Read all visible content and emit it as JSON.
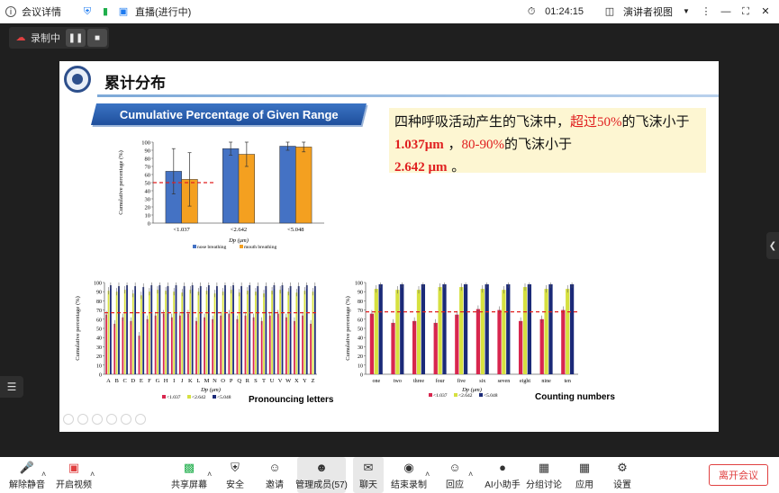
{
  "titlebar": {
    "meeting_info": "会议详情",
    "live": "直播(进行中)",
    "timer": "01:24:15",
    "view_mode": "演讲者视图"
  },
  "recording": {
    "label": "录制中"
  },
  "slide": {
    "title": "累计分布",
    "banner": "Cumulative Percentage of Given Range",
    "note": {
      "p1": "四种呼吸活动产生的飞沫中，",
      "p2": "超过",
      "p3": "50%",
      "p4": "的飞沫小于",
      "p5": "1.037μm",
      "p6": " ，",
      "p7": "80-90%",
      "p8": "的飞沫小于",
      "p9": "2.642 μm",
      "p10": " 。"
    }
  },
  "chart_data": [
    {
      "type": "bar",
      "categories": [
        "<1.037",
        "<2.642",
        "<5.048"
      ],
      "series": [
        {
          "name": "nose breathing",
          "values": [
            64,
            92,
            95
          ],
          "errors": [
            28,
            8,
            5
          ]
        },
        {
          "name": "mouth breathing",
          "values": [
            54,
            85,
            94
          ],
          "errors": [
            33,
            15,
            6
          ]
        }
      ],
      "ylabel": "Cumulative percentage (%)",
      "xlabel": "Dp (μm)",
      "ylim": [
        0,
        100
      ],
      "yticks": [
        0,
        10,
        20,
        30,
        40,
        50,
        60,
        70,
        80,
        90,
        100
      ],
      "reference_line": 50
    },
    {
      "type": "bar",
      "categories": [
        "A",
        "B",
        "C",
        "D",
        "E",
        "F",
        "G",
        "H",
        "I",
        "J",
        "K",
        "L",
        "M",
        "N",
        "O",
        "P",
        "Q",
        "R",
        "S",
        "T",
        "U",
        "V",
        "W",
        "X",
        "Y",
        "Z"
      ],
      "series": [
        {
          "name": "<1.037",
          "values": [
            65,
            55,
            62,
            58,
            42,
            60,
            64,
            66,
            62,
            64,
            66,
            58,
            62,
            60,
            64,
            66,
            60,
            64,
            62,
            58,
            64,
            66,
            62,
            58,
            64,
            55
          ]
        },
        {
          "name": "<2.642",
          "values": [
            91,
            90,
            92,
            88,
            86,
            90,
            92,
            91,
            90,
            89,
            92,
            90,
            91,
            88,
            90,
            92,
            89,
            91,
            90,
            88,
            91,
            92,
            90,
            89,
            91,
            90
          ]
        },
        {
          "name": "<5.048",
          "values": [
            97,
            96,
            97,
            96,
            95,
            97,
            97,
            96,
            97,
            96,
            97,
            96,
            97,
            96,
            97,
            97,
            96,
            97,
            96,
            96,
            97,
            97,
            96,
            96,
            97,
            96
          ]
        }
      ],
      "title": "Pronouncing letters",
      "ylabel": "Cumulative percentage (%)",
      "xlabel": "Dp (μm)",
      "ylim": [
        0,
        100
      ],
      "yticks": [
        0,
        10,
        20,
        30,
        40,
        50,
        60,
        70,
        80,
        90,
        100
      ],
      "reference_line": 67
    },
    {
      "type": "bar",
      "categories": [
        "one",
        "two",
        "three",
        "four",
        "five",
        "six",
        "seven",
        "eight",
        "nine",
        "ten"
      ],
      "series": [
        {
          "name": "<1.037",
          "values": [
            66,
            56,
            58,
            56,
            65,
            71,
            70,
            58,
            60,
            70
          ]
        },
        {
          "name": "<2.642",
          "values": [
            93,
            92,
            92,
            95,
            95,
            93,
            92,
            95,
            93,
            93
          ]
        },
        {
          "name": "<5.048",
          "values": [
            98,
            98,
            98,
            98,
            98,
            98,
            98,
            98,
            98,
            98
          ]
        }
      ],
      "title": "Counting numbers",
      "ylabel": "Cumulative percentage (%)",
      "xlabel": "Dp (μm)",
      "ylim": [
        0,
        100
      ],
      "yticks": [
        0,
        10,
        20,
        30,
        40,
        50,
        60,
        70,
        80,
        90,
        100
      ],
      "reference_line": 68
    }
  ],
  "colors": {
    "nose": "#4472c4",
    "mouth": "#f4a020",
    "s1": "#d8264e",
    "s2": "#d6e040",
    "s3": "#1b2a78",
    "ref": "#e02020"
  },
  "toolbar": {
    "mute": "解除静音",
    "video": "开启视频",
    "share": "共享屏幕",
    "security": "安全",
    "invite": "邀请",
    "members": "管理成员(57)",
    "chat": "聊天",
    "end_record": "结束录制",
    "reply": "回应",
    "ai": "AI小助手",
    "breakout": "分组讨论",
    "apps": "应用",
    "settings": "设置",
    "leave": "离开会议"
  }
}
